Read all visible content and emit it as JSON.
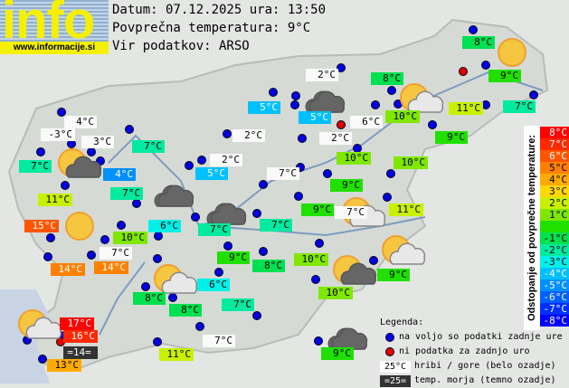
{
  "logo": {
    "text": "info",
    "url": "www.informacije.si"
  },
  "header": {
    "date_line": "Datum: 07.12.2025 ura: 13:50",
    "avg_line": "Povprečna temperatura: 9°C",
    "source_line": "Vir podatkov: ARSO"
  },
  "average_temperature": 9,
  "scale": {
    "title": "Odstopanje od povprečne temperature:",
    "cells": [
      {
        "label": "8°C",
        "color": "#ff0000"
      },
      {
        "label": "7°C",
        "color": "#ff2800"
      },
      {
        "label": "6°C",
        "color": "#ff5500"
      },
      {
        "label": "5°C",
        "color": "#ff8000"
      },
      {
        "label": "4°C",
        "color": "#ffaa00"
      },
      {
        "label": "3°C",
        "color": "#ffd800"
      },
      {
        "label": "2°C",
        "color": "#c8f000"
      },
      {
        "label": "1°C",
        "color": "#80e800"
      },
      {
        "label": "",
        "color": "#20e000"
      },
      {
        "label": "-1°C",
        "color": "#00e050"
      },
      {
        "label": "-2°C",
        "color": "#00eaa0"
      },
      {
        "label": "-3°C",
        "color": "#00f0e8"
      },
      {
        "label": "-4°C",
        "color": "#00c0ff"
      },
      {
        "label": "-5°C",
        "color": "#0090ff"
      },
      {
        "label": "-6°C",
        "color": "#0060ff"
      },
      {
        "label": "-7°C",
        "color": "#0030ff"
      },
      {
        "label": "-8°C",
        "color": "#0000ff"
      }
    ]
  },
  "legend": {
    "title": "Legenda:",
    "available": "na voljo so podatki zadnje ure",
    "unavailable": "ni podatka za zadnjo uro",
    "hill_sample": "25°C",
    "hill_text": "hribi / gore (belo ozadje)",
    "sea_sample": "=25=",
    "sea_text": "temp. morja (temno ozadje)",
    "available_color": "#0000e0",
    "unavailable_color": "#e00000"
  },
  "stations": [
    {
      "temp": "8°C",
      "kind": "normal"
    },
    {
      "temp": "9°C",
      "kind": "normal"
    },
    {
      "temp": "7°C",
      "kind": "normal"
    },
    {
      "temp": "11°C",
      "kind": "normal"
    },
    {
      "temp": "8°C",
      "kind": "normal"
    },
    {
      "temp": "10°C",
      "kind": "normal"
    },
    {
      "temp": "6°C",
      "kind": "hill"
    },
    {
      "temp": "2°C",
      "kind": "hill"
    },
    {
      "temp": "5°C",
      "kind": "normal"
    },
    {
      "temp": "5°C",
      "kind": "normal"
    },
    {
      "temp": "2°C",
      "kind": "hill"
    },
    {
      "temp": "9°C",
      "kind": "normal"
    },
    {
      "temp": "10°C",
      "kind": "normal"
    },
    {
      "temp": "10°C",
      "kind": "normal"
    },
    {
      "temp": "9°C",
      "kind": "normal"
    },
    {
      "temp": "11°C",
      "kind": "normal"
    },
    {
      "temp": "9°C",
      "kind": "normal"
    },
    {
      "temp": "7°C",
      "kind": "hill"
    },
    {
      "temp": "7°C",
      "kind": "normal"
    },
    {
      "temp": "7°C",
      "kind": "hill"
    },
    {
      "temp": "4°C",
      "kind": "hill"
    },
    {
      "temp": "-3°C",
      "kind": "hill"
    },
    {
      "temp": "3°C",
      "kind": "hill"
    },
    {
      "temp": "7°C",
      "kind": "normal"
    },
    {
      "temp": "7°C",
      "kind": "normal"
    },
    {
      "temp": "4°C",
      "kind": "normal"
    },
    {
      "temp": "2°C",
      "kind": "hill"
    },
    {
      "temp": "2°C",
      "kind": "hill"
    },
    {
      "temp": "5°C",
      "kind": "normal"
    },
    {
      "temp": "7°C",
      "kind": "normal"
    },
    {
      "temp": "11°C",
      "kind": "normal"
    },
    {
      "temp": "15°C",
      "kind": "normal"
    },
    {
      "temp": "10°C",
      "kind": "normal"
    },
    {
      "temp": "6°C",
      "kind": "normal"
    },
    {
      "temp": "7°C",
      "kind": "normal"
    },
    {
      "temp": "7°C",
      "kind": "hill"
    },
    {
      "temp": "14°C",
      "kind": "normal"
    },
    {
      "temp": "14°C",
      "kind": "normal"
    },
    {
      "temp": "9°C",
      "kind": "normal"
    },
    {
      "temp": "8°C",
      "kind": "normal"
    },
    {
      "temp": "6°C",
      "kind": "normal"
    },
    {
      "temp": "10°C",
      "kind": "normal"
    },
    {
      "temp": "8°C",
      "kind": "normal"
    },
    {
      "temp": "8°C",
      "kind": "normal"
    },
    {
      "temp": "7°C",
      "kind": "normal"
    },
    {
      "temp": "10°C",
      "kind": "normal"
    },
    {
      "temp": "9°C",
      "kind": "normal"
    },
    {
      "temp": "17°C",
      "kind": "normal"
    },
    {
      "temp": "16°C",
      "kind": "normal"
    },
    {
      "temp": "=14=",
      "kind": "sea"
    },
    {
      "temp": "13°C",
      "kind": "normal"
    },
    {
      "temp": "7°C",
      "kind": "hill"
    },
    {
      "temp": "11°C",
      "kind": "normal"
    },
    {
      "temp": "9°C",
      "kind": "normal"
    }
  ],
  "markers": [
    "available",
    "available",
    "unavailable",
    "available",
    "available",
    "available",
    "available",
    "available",
    "available",
    "available",
    "available",
    "available",
    "unavailable",
    "available",
    "available",
    "available",
    "available",
    "available",
    "available",
    "available",
    "available",
    "available",
    "available",
    "available",
    "available",
    "available",
    "available",
    "available",
    "available",
    "available",
    "available",
    "available",
    "available",
    "available",
    "available",
    "available",
    "available",
    "available",
    "available",
    "available",
    "available",
    "available",
    "available",
    "available",
    "available",
    "available",
    "available",
    "available",
    "available",
    "unavailable",
    "available",
    "available",
    "available",
    "available",
    "available",
    "available",
    "available",
    "available",
    "available",
    "available"
  ],
  "weather_icons": [
    "sun",
    "sun-cloud",
    "dark-cloud",
    "sun-dark-cloud",
    "dark-cloud",
    "dark-cloud",
    "sun",
    "sun-cloud",
    "sun-cloud",
    "sun-cloud",
    "sun-dark-cloud",
    "sun-cloud",
    "dark-cloud"
  ]
}
